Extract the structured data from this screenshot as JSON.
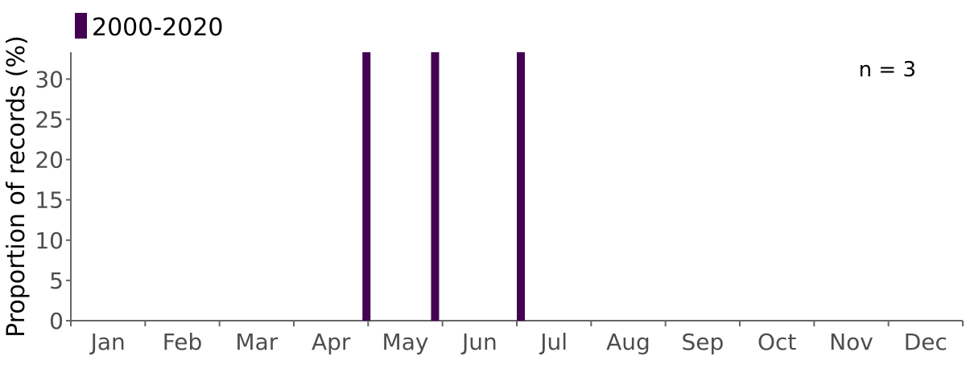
{
  "chart_data": {
    "type": "bar",
    "title": "",
    "xlabel": "",
    "ylabel": "Proportion of records (%)",
    "x_unit": "week of year",
    "x_tick_labels": [
      "Jan",
      "Feb",
      "Mar",
      "Apr",
      "May",
      "Jun",
      "Jul",
      "Aug",
      "Sep",
      "Oct",
      "Nov",
      "Dec"
    ],
    "y_ticks": [
      0,
      5,
      10,
      15,
      20,
      25,
      30
    ],
    "ylim": [
      0,
      33.33
    ],
    "grid": false,
    "legend_position": "top-left",
    "annotation": "n = 3",
    "series": [
      {
        "name": "2000-2020",
        "color": "#440154",
        "x": [
          18,
          22,
          27
        ],
        "values": [
          33.33,
          33.33,
          33.33
        ]
      }
    ]
  }
}
